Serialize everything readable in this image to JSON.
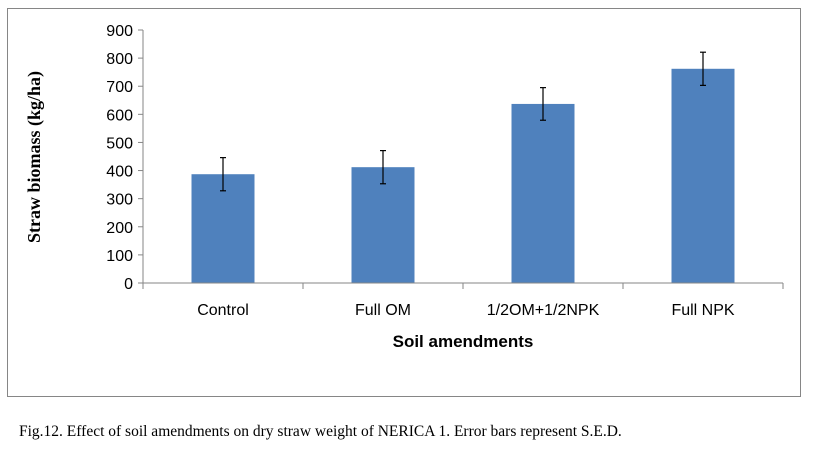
{
  "chart_data": {
    "type": "bar",
    "categories": [
      "Control",
      "Full OM",
      "1/2OM+1/2NPK",
      "Full NPK"
    ],
    "values": [
      387,
      412,
      637,
      762
    ],
    "errors": [
      59,
      59,
      58,
      59
    ],
    "xlabel": "Soil amendments",
    "ylabel": "Straw biomass (kg/ha)",
    "ylim": [
      0,
      900
    ],
    "yticks": [
      0,
      100,
      200,
      300,
      400,
      500,
      600,
      700,
      800,
      900
    ],
    "grid": false,
    "bar_color": "#4F81BD"
  },
  "caption": "Fig.12. Effect of soil amendments  on dry straw weight  of NERICA 1. Error bars represent S.E.D."
}
